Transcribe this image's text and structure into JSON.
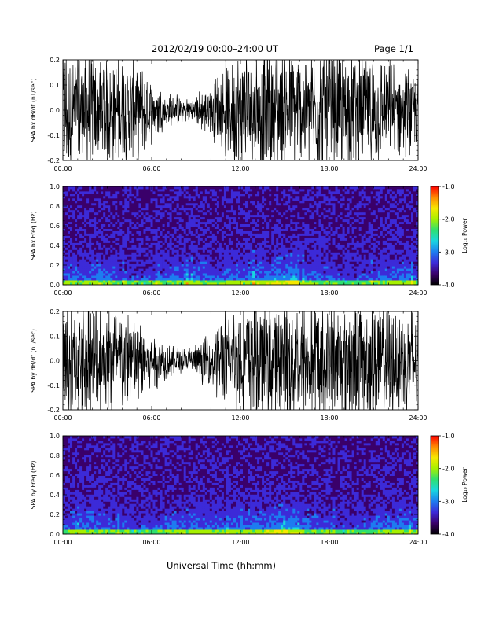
{
  "header": {
    "title": "2012/02/19   00:00–24:00 UT",
    "page": "Page 1/1"
  },
  "footer": {
    "xlabel": "Universal Time (hh:mm)"
  },
  "chart_data": [
    {
      "type": "line",
      "ylabel": "SPA bx dB/dt (nT/sec)",
      "xlim": [
        0,
        24
      ],
      "ylim": [
        -0.2,
        0.2
      ],
      "x_tick_labels": [
        "00:00",
        "06:00",
        "12:00",
        "18:00",
        "24:00"
      ],
      "y_tick_labels": [
        "0.2",
        "0.1",
        "0.0",
        "-0.1",
        "-0.2"
      ],
      "y_ticks": [
        0.2,
        0.1,
        0.0,
        -0.1,
        -0.2
      ],
      "envelope_hours": [
        0,
        1,
        2,
        3,
        4,
        5,
        6,
        7,
        8,
        9,
        10,
        11,
        12,
        13,
        14,
        15,
        16,
        17,
        18,
        19,
        20,
        21,
        22,
        23,
        24
      ],
      "envelope_amplitude": [
        0.2,
        0.2,
        0.2,
        0.18,
        0.17,
        0.15,
        0.1,
        0.06,
        0.04,
        0.05,
        0.08,
        0.15,
        0.2,
        0.2,
        0.2,
        0.2,
        0.18,
        0.2,
        0.2,
        0.2,
        0.2,
        0.18,
        0.15,
        0.13,
        0.12
      ],
      "color": "#000000"
    },
    {
      "type": "heatmap",
      "ylabel": "SPA bx Freq (Hz)",
      "xlim": [
        0,
        24
      ],
      "ylim": [
        0,
        1.0
      ],
      "x_tick_labels": [
        "00:00",
        "06:00",
        "12:00",
        "18:00",
        "24:00"
      ],
      "y_tick_labels": [
        "1.0",
        "0.8",
        "0.6",
        "0.4",
        "0.2",
        "0.0"
      ],
      "y_ticks": [
        1.0,
        0.8,
        0.6,
        0.4,
        0.2,
        0.0
      ],
      "colorbar": {
        "label": "Log₁₀ Power",
        "range": [
          -4.0,
          -1.0
        ],
        "tick_labels": [
          "-1.0",
          "-2.0",
          "-3.0",
          "-4.0"
        ],
        "ticks": [
          -1.0,
          -2.0,
          -3.0,
          -4.0
        ],
        "colors": [
          "#000000",
          "#3a006a",
          "#3c2ad8",
          "#1d7cf0",
          "#19d6e0",
          "#2ee070",
          "#a6f000",
          "#f6e800",
          "#ff8a00",
          "#ff0000"
        ]
      }
    },
    {
      "type": "line",
      "ylabel": "SPA by dB/dt (nT/sec)",
      "xlim": [
        0,
        24
      ],
      "ylim": [
        -0.2,
        0.2
      ],
      "x_tick_labels": [
        "00:00",
        "06:00",
        "12:00",
        "18:00",
        "24:00"
      ],
      "y_tick_labels": [
        "0.2",
        "0.1",
        "0.0",
        "-0.1",
        "-0.2"
      ],
      "y_ticks": [
        0.2,
        0.1,
        0.0,
        -0.1,
        -0.2
      ],
      "envelope_hours": [
        0,
        1,
        2,
        3,
        4,
        5,
        6,
        7,
        8,
        9,
        10,
        11,
        12,
        13,
        14,
        15,
        16,
        17,
        18,
        19,
        20,
        21,
        22,
        23,
        24
      ],
      "envelope_amplitude": [
        0.2,
        0.2,
        0.2,
        0.2,
        0.18,
        0.16,
        0.1,
        0.06,
        0.04,
        0.05,
        0.09,
        0.16,
        0.2,
        0.2,
        0.2,
        0.2,
        0.2,
        0.2,
        0.2,
        0.2,
        0.2,
        0.2,
        0.2,
        0.18,
        0.17
      ],
      "color": "#000000"
    },
    {
      "type": "heatmap",
      "ylabel": "SPA by Freq (Hz)",
      "xlim": [
        0,
        24
      ],
      "ylim": [
        0,
        1.0
      ],
      "x_tick_labels": [
        "00:00",
        "06:00",
        "12:00",
        "18:00",
        "24:00"
      ],
      "y_tick_labels": [
        "1.0",
        "0.8",
        "0.6",
        "0.4",
        "0.2",
        "0.0"
      ],
      "y_ticks": [
        1.0,
        0.8,
        0.6,
        0.4,
        0.2,
        0.0
      ],
      "colorbar": {
        "label": "Log₁₀ Power",
        "range": [
          -4.0,
          -1.0
        ],
        "tick_labels": [
          "-1.0",
          "-2.0",
          "-3.0",
          "-4.0"
        ],
        "ticks": [
          -1.0,
          -2.0,
          -3.0,
          -4.0
        ],
        "colors": [
          "#000000",
          "#3a006a",
          "#3c2ad8",
          "#1d7cf0",
          "#19d6e0",
          "#2ee070",
          "#a6f000",
          "#f6e800",
          "#ff8a00",
          "#ff0000"
        ]
      }
    }
  ]
}
